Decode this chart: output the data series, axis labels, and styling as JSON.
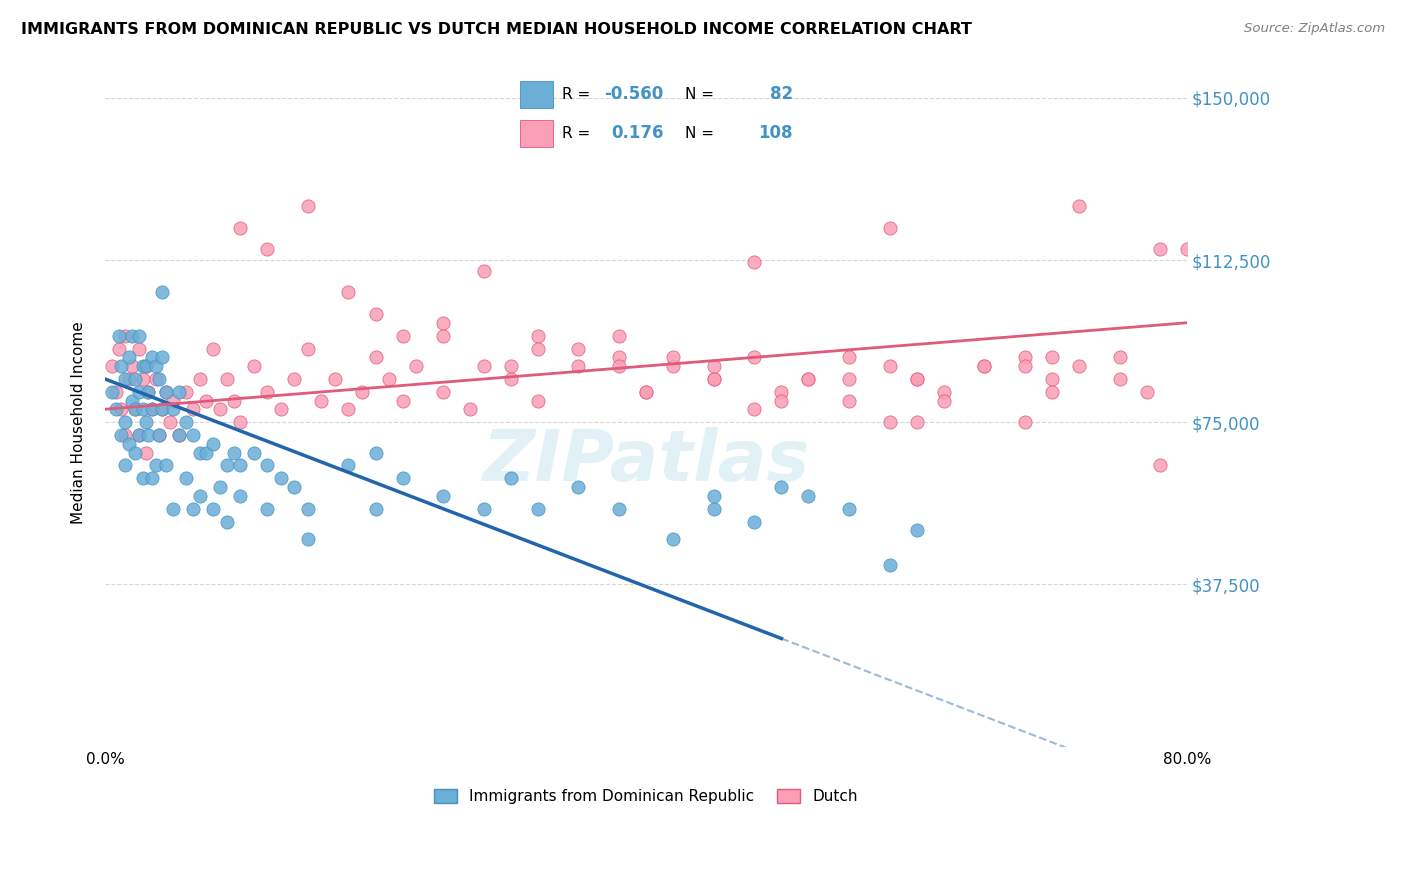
{
  "title": "IMMIGRANTS FROM DOMINICAN REPUBLIC VS DUTCH MEDIAN HOUSEHOLD INCOME CORRELATION CHART",
  "source": "Source: ZipAtlas.com",
  "ylabel": "Median Household Income",
  "yticks": [
    0,
    37500,
    75000,
    112500,
    150000
  ],
  "ytick_labels": [
    "",
    "$37,500",
    "$75,000",
    "$112,500",
    "$150,000"
  ],
  "xtick_labels": [
    "0.0%",
    "",
    "",
    "",
    "",
    "",
    "",
    "",
    "80.0%"
  ],
  "xmin": 0.0,
  "xmax": 0.8,
  "ymin": 0,
  "ymax": 150000,
  "blue_color": "#6baed6",
  "pink_color": "#fa9fb5",
  "blue_edge": "#4292c6",
  "pink_edge": "#e05a7a",
  "trend_blue_color": "#2166ac",
  "trend_pink_color": "#e05a7a",
  "R_blue": "-0.560",
  "N_blue": "82",
  "R_pink": "0.176",
  "N_pink": "108",
  "blue_intercept": 85000,
  "blue_slope": -120000,
  "pink_intercept": 78000,
  "pink_slope": 25000,
  "watermark": "ZIPatlas",
  "legend_label_blue": "Immigrants from Dominican Republic",
  "legend_label_pink": "Dutch",
  "blue_scatter_x": [
    0.005,
    0.008,
    0.01,
    0.012,
    0.012,
    0.015,
    0.015,
    0.015,
    0.018,
    0.018,
    0.02,
    0.02,
    0.022,
    0.022,
    0.022,
    0.025,
    0.025,
    0.025,
    0.028,
    0.028,
    0.028,
    0.03,
    0.03,
    0.032,
    0.032,
    0.035,
    0.035,
    0.035,
    0.038,
    0.038,
    0.04,
    0.04,
    0.042,
    0.042,
    0.042,
    0.045,
    0.045,
    0.05,
    0.05,
    0.055,
    0.055,
    0.06,
    0.06,
    0.065,
    0.065,
    0.07,
    0.07,
    0.075,
    0.08,
    0.08,
    0.085,
    0.09,
    0.09,
    0.095,
    0.1,
    0.1,
    0.11,
    0.12,
    0.12,
    0.13,
    0.14,
    0.15,
    0.15,
    0.18,
    0.2,
    0.2,
    0.22,
    0.25,
    0.28,
    0.3,
    0.32,
    0.35,
    0.38,
    0.42,
    0.45,
    0.48,
    0.5,
    0.52,
    0.55,
    0.58,
    0.6,
    0.45
  ],
  "blue_scatter_y": [
    82000,
    78000,
    95000,
    88000,
    72000,
    85000,
    75000,
    65000,
    90000,
    70000,
    95000,
    80000,
    85000,
    78000,
    68000,
    95000,
    82000,
    72000,
    88000,
    78000,
    62000,
    88000,
    75000,
    82000,
    72000,
    90000,
    78000,
    62000,
    88000,
    65000,
    85000,
    72000,
    90000,
    105000,
    78000,
    82000,
    65000,
    78000,
    55000,
    82000,
    72000,
    75000,
    62000,
    72000,
    55000,
    68000,
    58000,
    68000,
    70000,
    55000,
    60000,
    65000,
    52000,
    68000,
    65000,
    58000,
    68000,
    65000,
    55000,
    62000,
    60000,
    55000,
    48000,
    65000,
    68000,
    55000,
    62000,
    58000,
    55000,
    62000,
    55000,
    60000,
    55000,
    48000,
    55000,
    52000,
    60000,
    58000,
    55000,
    42000,
    50000,
    58000
  ],
  "pink_scatter_x": [
    0.005,
    0.008,
    0.01,
    0.012,
    0.015,
    0.015,
    0.018,
    0.02,
    0.022,
    0.025,
    0.025,
    0.028,
    0.03,
    0.03,
    0.032,
    0.035,
    0.038,
    0.04,
    0.042,
    0.045,
    0.048,
    0.05,
    0.055,
    0.06,
    0.065,
    0.07,
    0.075,
    0.08,
    0.085,
    0.09,
    0.095,
    0.1,
    0.11,
    0.12,
    0.13,
    0.14,
    0.15,
    0.16,
    0.17,
    0.18,
    0.19,
    0.2,
    0.21,
    0.22,
    0.23,
    0.25,
    0.27,
    0.3,
    0.32,
    0.35,
    0.38,
    0.4,
    0.42,
    0.45,
    0.48,
    0.5,
    0.52,
    0.55,
    0.58,
    0.6,
    0.62,
    0.65,
    0.68,
    0.7,
    0.72,
    0.75,
    0.77,
    0.55,
    0.6,
    0.32,
    0.15,
    0.2,
    0.28,
    0.35,
    0.42,
    0.18,
    0.25,
    0.3,
    0.38,
    0.45,
    0.5,
    0.58,
    0.65,
    0.7,
    0.75,
    0.78,
    0.22,
    0.28,
    0.4,
    0.48,
    0.55,
    0.62,
    0.68,
    0.12,
    0.38,
    0.52,
    0.32,
    0.25,
    0.45,
    0.6,
    0.68,
    0.7,
    0.8,
    0.1,
    0.48,
    0.58,
    0.72,
    0.78
  ],
  "pink_scatter_y": [
    88000,
    82000,
    92000,
    78000,
    95000,
    72000,
    85000,
    88000,
    78000,
    92000,
    72000,
    85000,
    88000,
    68000,
    82000,
    78000,
    85000,
    72000,
    78000,
    82000,
    75000,
    80000,
    72000,
    82000,
    78000,
    85000,
    80000,
    92000,
    78000,
    85000,
    80000,
    75000,
    88000,
    82000,
    78000,
    85000,
    92000,
    80000,
    85000,
    78000,
    82000,
    90000,
    85000,
    80000,
    88000,
    82000,
    78000,
    85000,
    80000,
    88000,
    90000,
    82000,
    88000,
    85000,
    90000,
    82000,
    85000,
    90000,
    88000,
    85000,
    82000,
    88000,
    90000,
    85000,
    88000,
    90000,
    82000,
    80000,
    75000,
    95000,
    125000,
    100000,
    110000,
    92000,
    90000,
    105000,
    98000,
    88000,
    95000,
    85000,
    80000,
    75000,
    88000,
    82000,
    85000,
    65000,
    95000,
    88000,
    82000,
    78000,
    85000,
    80000,
    75000,
    115000,
    88000,
    85000,
    92000,
    95000,
    88000,
    85000,
    88000,
    90000,
    115000,
    120000,
    112000,
    120000,
    125000,
    115000
  ]
}
